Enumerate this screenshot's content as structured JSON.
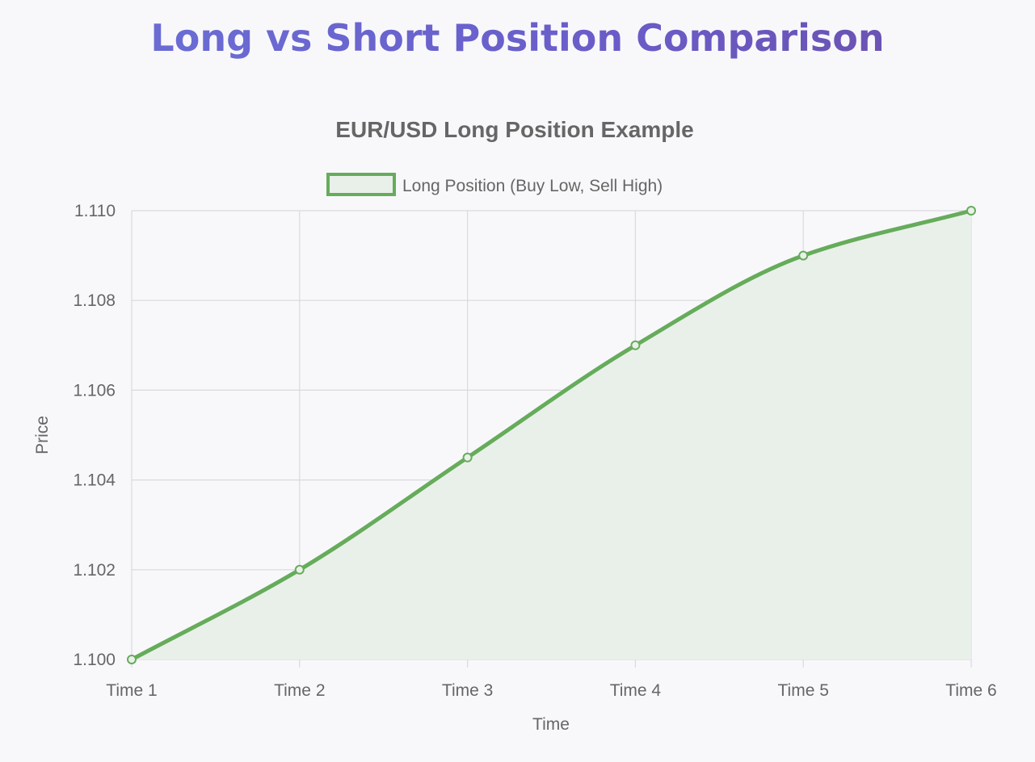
{
  "page": {
    "title": "Long vs Short Position Comparison"
  },
  "colors": {
    "line": "#66ac5b",
    "fill": "#e9f0e9",
    "grid": "#d9d9de",
    "text": "#666666"
  },
  "chart_data": {
    "type": "line",
    "title": "EUR/USD Long Position Example",
    "xlabel": "Time",
    "ylabel": "Price",
    "categories": [
      "Time 1",
      "Time 2",
      "Time 3",
      "Time 4",
      "Time 5",
      "Time 6"
    ],
    "series": [
      {
        "name": "Long Position (Buy Low, Sell High)",
        "values": [
          1.1,
          1.102,
          1.1045,
          1.107,
          1.109,
          1.11
        ]
      }
    ],
    "ylim": [
      1.1,
      1.11
    ],
    "yticks": [
      "1.100",
      "1.102",
      "1.104",
      "1.106",
      "1.108",
      "1.110"
    ],
    "grid": true,
    "filled": true,
    "legend_position": "top"
  }
}
